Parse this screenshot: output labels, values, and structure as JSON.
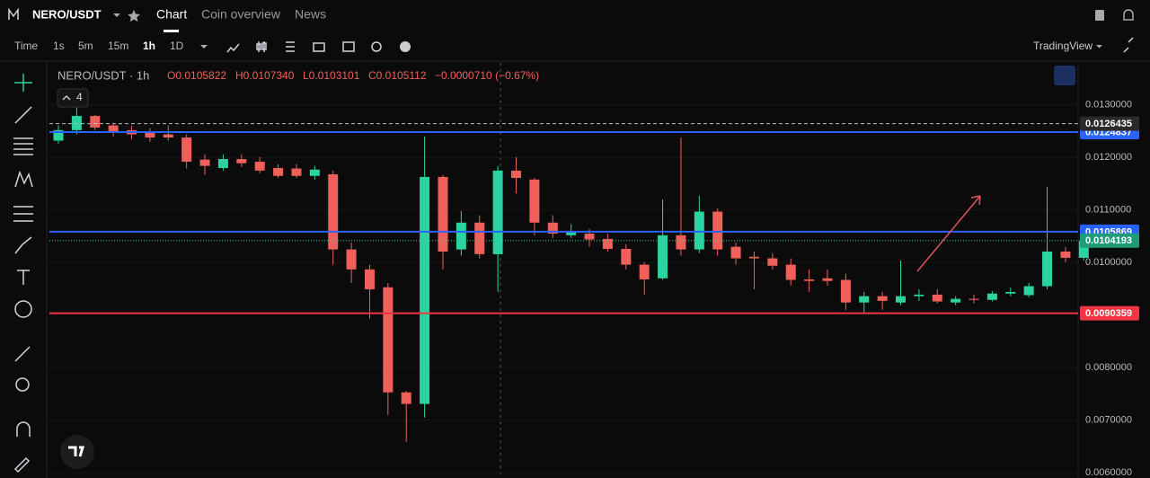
{
  "header": {
    "symbol": "NERO/USDT",
    "tabs": [
      "Chart",
      "Coin overview",
      "News"
    ]
  },
  "toolbar": {
    "intervals": [
      "Time",
      "1s",
      "5m",
      "15m",
      "1h",
      "1D"
    ],
    "provider": "TradingView"
  },
  "legend": {
    "symbol": "NERO/USDT · 1h",
    "open": "O0.0105822",
    "high": "H0.0107340",
    "low": "L0.0103101",
    "close": "C0.0105112",
    "change": "−0.0000710 (−0.67%)",
    "indicators": "4"
  },
  "chart_data": {
    "type": "candlestick",
    "up_color": "#2bd3a0",
    "down_color": "#f0605a",
    "open": [
      0.01232,
      0.01252,
      0.01279,
      0.01261,
      0.01252,
      0.01247,
      0.01244,
      0.01238,
      0.01196,
      0.0118,
      0.01197,
      0.01192,
      0.0118,
      0.01179,
      0.01165,
      0.01168,
      0.01025,
      0.00987,
      0.00953,
      0.00753,
      0.00731,
      0.01163,
      0.01025,
      0.01076,
      0.01016,
      0.01175,
      0.01158,
      0.01076,
      0.01052,
      0.01055,
      0.01045,
      0.01026,
      0.00996,
      0.0097,
      0.01052,
      0.01025,
      0.01097,
      0.0103,
      0.01011,
      0.01008,
      0.00996,
      0.00968,
      0.0097,
      0.00967,
      0.00924,
      0.00936,
      0.00924,
      0.00936,
      0.00939,
      0.00924,
      0.00931,
      0.00929,
      0.00941,
      0.00938,
      0.00955,
      0.01021,
      0.01009
    ],
    "high": [
      0.01261,
      0.01295,
      0.01281,
      0.01264,
      0.01261,
      0.01256,
      0.01261,
      0.01244,
      0.01206,
      0.01206,
      0.01206,
      0.01201,
      0.01187,
      0.01187,
      0.01184,
      0.01175,
      0.01038,
      0.00996,
      0.00961,
      0.00756,
      0.0124,
      0.01167,
      0.01098,
      0.0109,
      0.01184,
      0.01201,
      0.01161,
      0.0109,
      0.01073,
      0.01064,
      0.01055,
      0.01035,
      0.01001,
      0.0112,
      0.01238,
      0.01127,
      0.01103,
      0.01038,
      0.01021,
      0.01018,
      0.01008,
      0.00987,
      0.00987,
      0.00979,
      0.00944,
      0.00944,
      0.01004,
      0.00949,
      0.00949,
      0.00936,
      0.00939,
      0.00946,
      0.00953,
      0.00961,
      0.01144,
      0.0103,
      0.01059
    ],
    "low": [
      0.01226,
      0.01244,
      0.01252,
      0.0124,
      0.01235,
      0.0123,
      0.01232,
      0.01179,
      0.01167,
      0.01175,
      0.01182,
      0.0117,
      0.01161,
      0.01161,
      0.01158,
      0.00996,
      0.00961,
      0.00893,
      0.0071,
      0.00659,
      0.00705,
      0.00987,
      0.01013,
      0.01008,
      0.00944,
      0.01132,
      0.01052,
      0.01047,
      0.01047,
      0.0103,
      0.01021,
      0.00987,
      0.00939,
      0.00967,
      0.01013,
      0.01018,
      0.01013,
      0.00996,
      0.00949,
      0.00987,
      0.00956,
      0.00944,
      0.00956,
      0.0091,
      0.00905,
      0.0091,
      0.00919,
      0.00927,
      0.00922,
      0.00919,
      0.00922,
      0.00926,
      0.00936,
      0.00934,
      0.00949,
      0.01001,
      0.01004
    ],
    "close": [
      0.01252,
      0.01279,
      0.01257,
      0.01247,
      0.01244,
      0.01238,
      0.01238,
      0.01192,
      0.01184,
      0.01197,
      0.01189,
      0.01175,
      0.01165,
      0.01165,
      0.01177,
      0.01025,
      0.00987,
      0.00949,
      0.00753,
      0.00731,
      0.01163,
      0.01021,
      0.01076,
      0.01016,
      0.01175,
      0.01161,
      0.01076,
      0.01055,
      0.01059,
      0.01044,
      0.01026,
      0.00996,
      0.00968,
      0.01052,
      0.01025,
      0.01097,
      0.01025,
      0.01008,
      0.01008,
      0.00994,
      0.00967,
      0.00965,
      0.00965,
      0.00924,
      0.00936,
      0.00927,
      0.00936,
      0.00939,
      0.00926,
      0.00931,
      0.00929,
      0.00941,
      0.00944,
      0.00955,
      0.01021,
      0.01009,
      0.01042
    ],
    "levels": [
      {
        "value": 0.0124837,
        "color": "#2962ff",
        "style": "solid",
        "label_bg": "#2962ff"
      },
      {
        "value": 0.0126435,
        "color": "#bbbbbb",
        "style": "dashed",
        "label_bg": "#2a2a2a"
      },
      {
        "value": 0.0105869,
        "color": "#2962ff",
        "style": "solid",
        "label_bg": "#2962ff"
      },
      {
        "value": 0.0104193,
        "color": "#2bd3a0",
        "style": "dotted",
        "label_bg": "#1f9b77"
      },
      {
        "value": 0.0090359,
        "color": "#f23645",
        "style": "solid",
        "label_bg": "#f23645"
      }
    ],
    "ylim": [
      0.0059,
      0.0138
    ],
    "yticks": [
      {
        "value": 0.013,
        "label": "0.0130000"
      },
      {
        "value": 0.012,
        "label": "0.0120000"
      },
      {
        "value": 0.011,
        "label": "0.0110000"
      },
      {
        "value": 0.01,
        "label": "0.0100000"
      },
      {
        "value": 0.008,
        "label": "0.0080000"
      },
      {
        "value": 0.007,
        "label": "0.0070000"
      },
      {
        "value": 0.006,
        "label": "0.0060000"
      }
    ],
    "grid": true
  }
}
